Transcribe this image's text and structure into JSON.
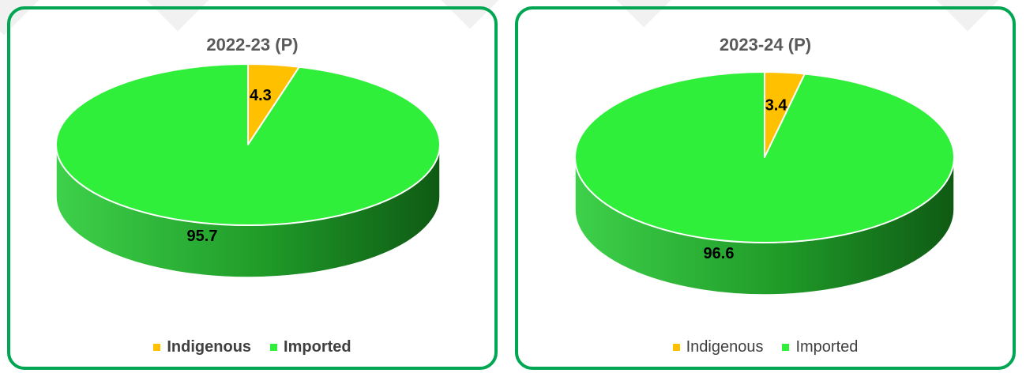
{
  "colors": {
    "indigenous": "#ffc000",
    "imported_top": "#2fef3a",
    "imported_side_light": "#3ed14a",
    "imported_side_dark": "#0f5a14",
    "indigenous_side": "#c68f00",
    "frame": "#00a651"
  },
  "chart_data": [
    {
      "type": "pie",
      "title": "2022-23 (P)",
      "categories": [
        "Indigenous",
        "Imported"
      ],
      "values": [
        4.3,
        95.7
      ],
      "data_labels": [
        "4.3",
        "95.7"
      ],
      "legend": {
        "position": "bottom",
        "entries": [
          "Indigenous",
          "Imported"
        ]
      }
    },
    {
      "type": "pie",
      "title": "2023-24 (P)",
      "categories": [
        "Indigenous",
        "Imported"
      ],
      "values": [
        3.4,
        96.6
      ],
      "data_labels": [
        "3.4",
        "96.6"
      ],
      "legend": {
        "position": "bottom",
        "entries": [
          "Indigenous",
          "Imported"
        ]
      }
    }
  ]
}
